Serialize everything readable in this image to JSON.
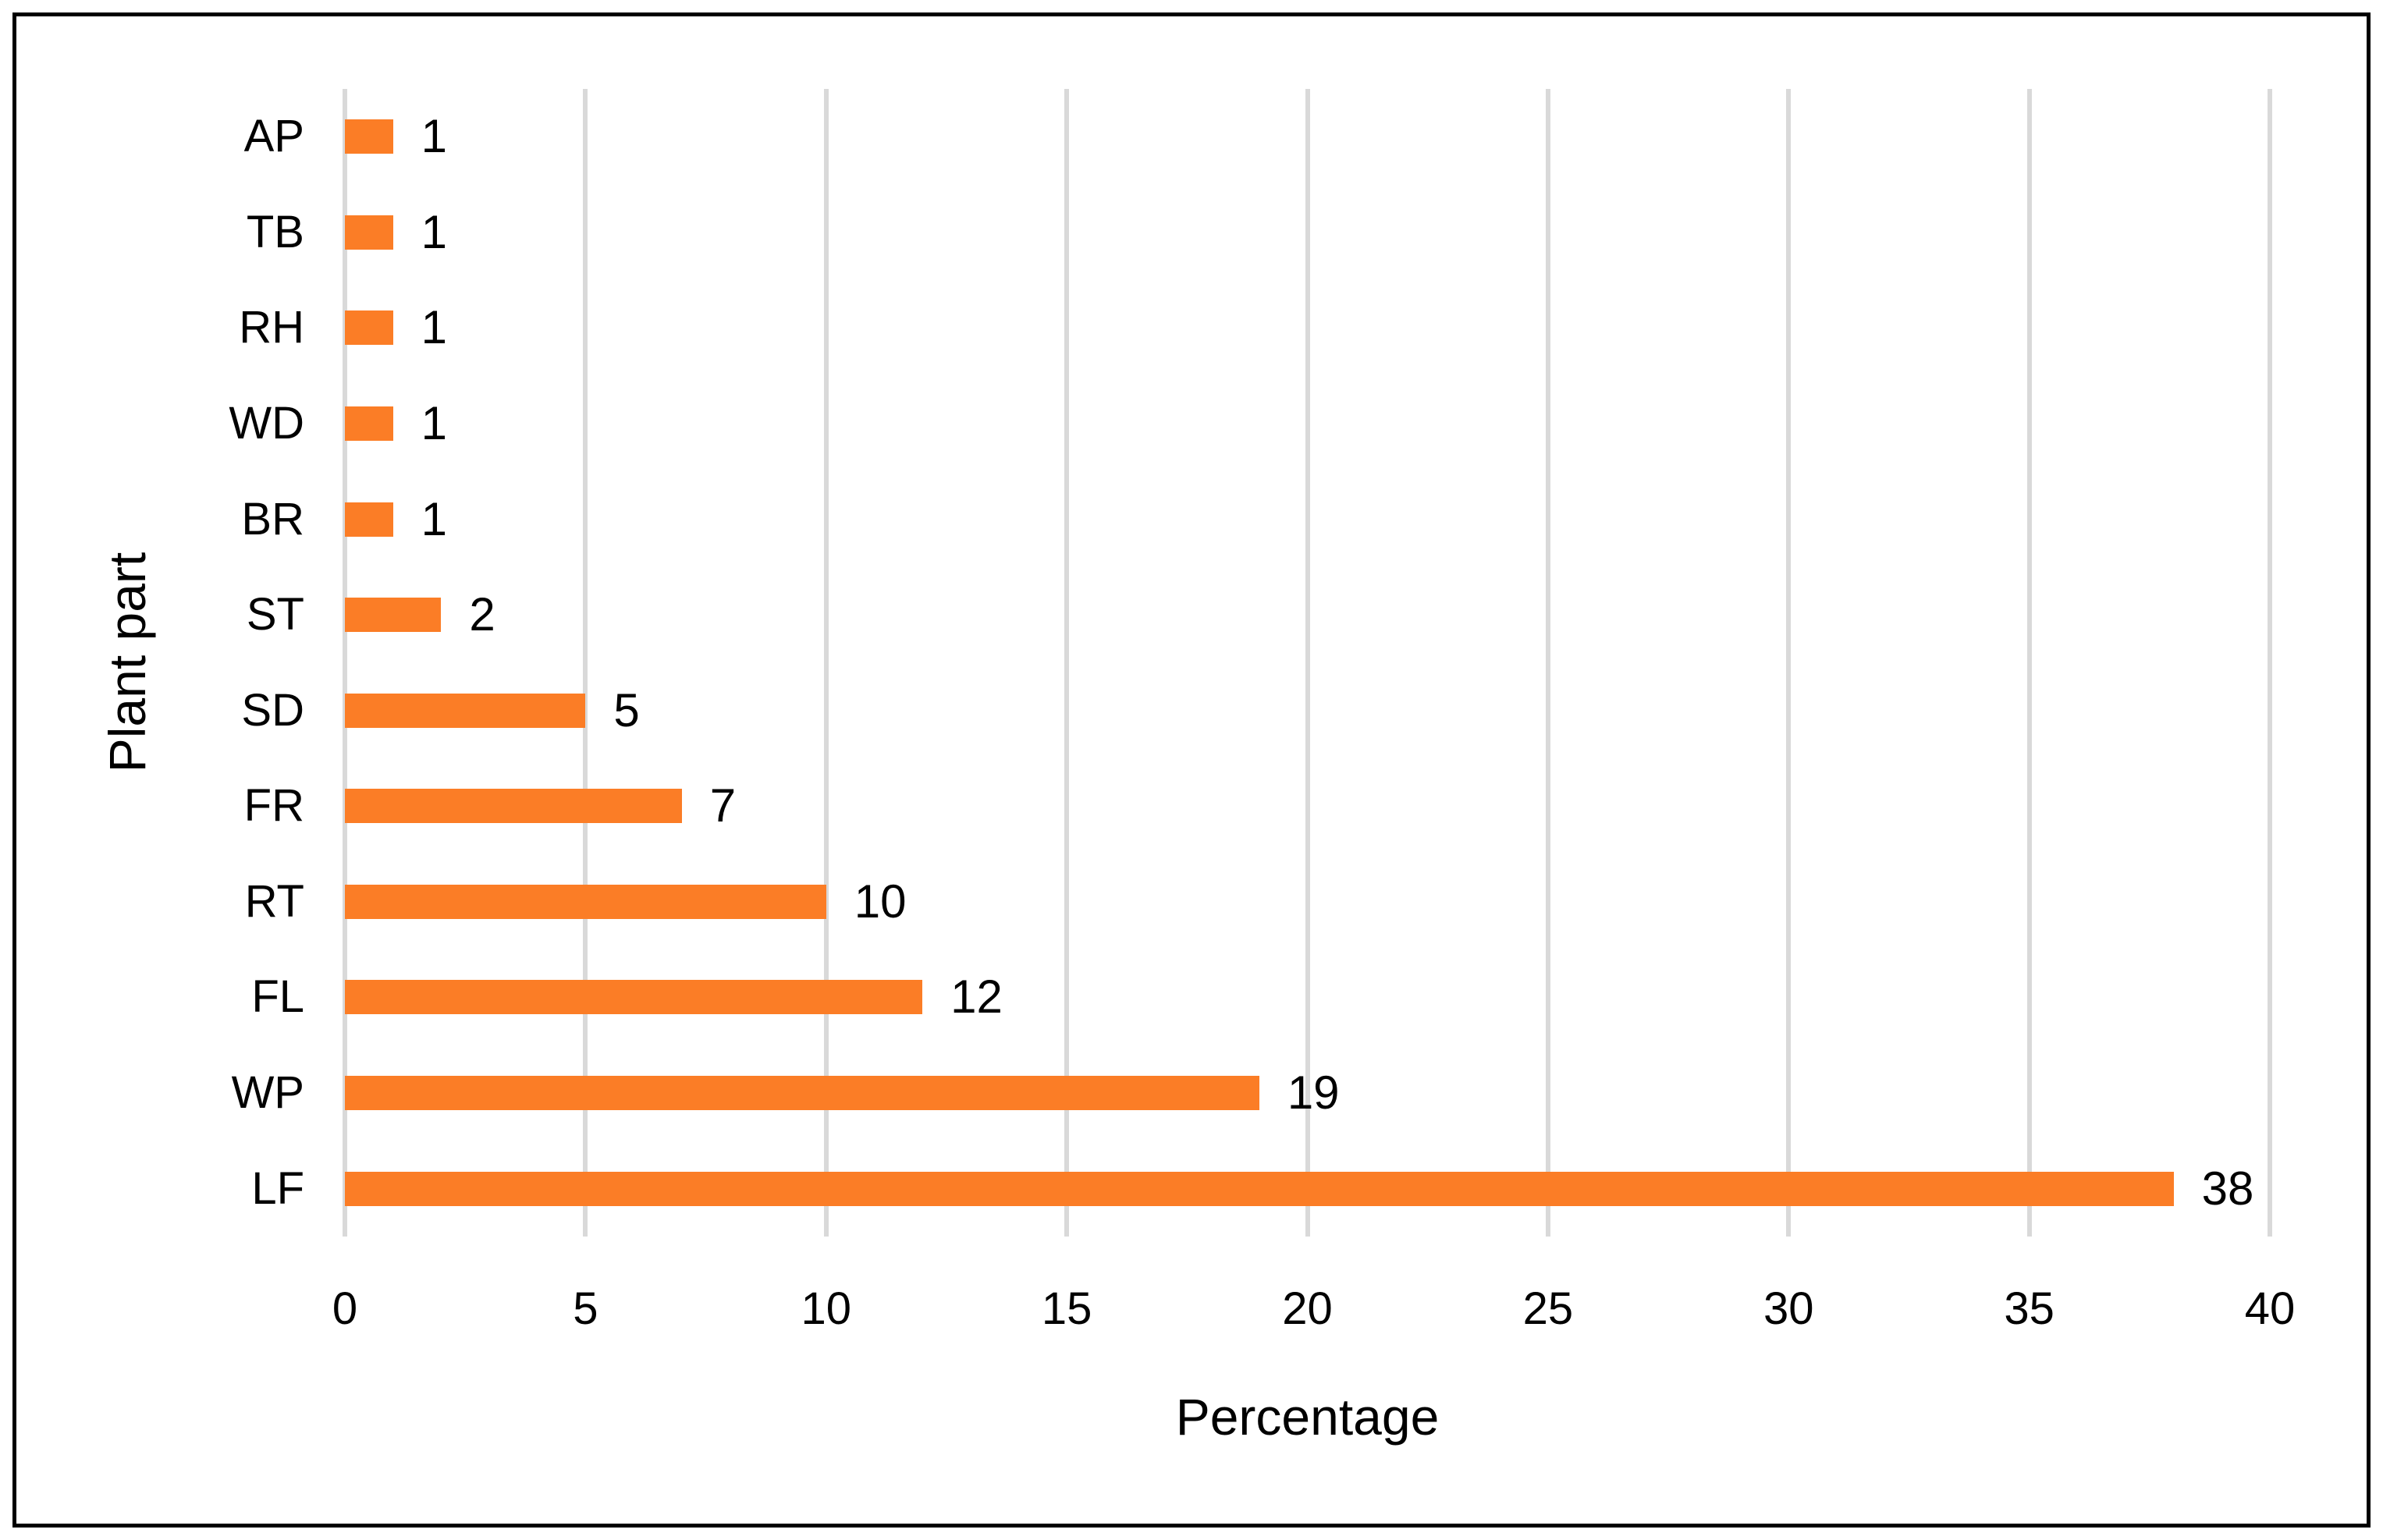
{
  "chart_data": {
    "type": "bar",
    "orientation": "horizontal",
    "title": "",
    "xlabel": "Percentage",
    "ylabel": "Plant part",
    "categories_top_to_bottom": [
      "AP",
      "TB",
      "RH",
      "WD",
      "BR",
      "ST",
      "SD",
      "FR",
      "RT",
      "FL",
      "WP",
      "LF"
    ],
    "values": [
      1,
      1,
      1,
      1,
      1,
      2,
      5,
      7,
      10,
      12,
      19,
      38
    ],
    "data_labels": [
      1,
      1,
      1,
      1,
      1,
      2,
      5,
      7,
      10,
      12,
      19,
      38
    ],
    "xlim": [
      0,
      40
    ],
    "xticks": [
      0,
      5,
      10,
      15,
      20,
      25,
      30,
      35,
      40
    ],
    "grid": "vertical-only",
    "legend": "none",
    "bar_color": "#FB7D26",
    "gridline_color": "#D9D9D9",
    "text_color": "#000000",
    "frame_border_color": "#000000"
  }
}
